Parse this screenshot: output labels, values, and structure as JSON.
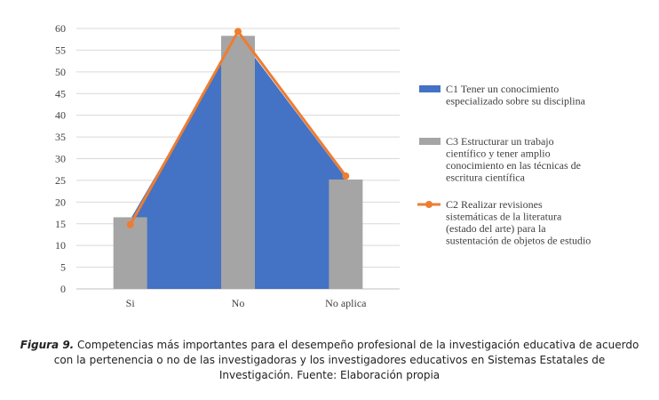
{
  "chart_data": {
    "type": "bar",
    "categories": [
      "Si",
      "No",
      "No aplica"
    ],
    "ylim": [
      0,
      60
    ],
    "yticks": [
      0,
      5,
      10,
      15,
      20,
      25,
      30,
      35,
      40,
      45,
      50,
      55,
      60
    ],
    "grid": true,
    "legend_position": "right",
    "series": [
      {
        "name": "C1 Tener un conocimiento especializado sobre su disciplina",
        "kind": "area",
        "color": "#4472C4",
        "values": [
          16,
          58.5,
          25.5
        ]
      },
      {
        "name": "C3 Estructurar un trabajo científico y tener amplio conocimiento en las técnicas de escritura científica",
        "kind": "bar",
        "color": "#A5A5A5",
        "values": [
          16.5,
          58.3,
          25.2
        ]
      },
      {
        "name": "C2 Realizar revisiones sistemáticas de la literatura (estado del arte) para la sustentación de objetos de estudio",
        "kind": "line",
        "color": "#ED7D31",
        "values": [
          14.8,
          59.3,
          26
        ]
      }
    ],
    "legend": [
      [
        "C1 Tener un conocimiento",
        "especializado sobre su disciplina"
      ],
      [
        "C3 Estructurar un trabajo",
        "científico y tener amplio",
        "conocimiento en las técnicas de",
        "escritura científica"
      ],
      [
        "C2 Realizar revisiones",
        "sistemáticas de la literatura",
        "(estado del arte) para la",
        "sustentación de objetos de estudio"
      ]
    ]
  },
  "caption": {
    "label": "Figura 9.",
    "text": " Competencias más importantes para el desempeño profesional de la investigación educativa de acuerdo con la pertenencia o no de las investigadoras y los investigadores educativos en Sistemas Estatales de Investigación. Fuente: Elaboración propia"
  }
}
